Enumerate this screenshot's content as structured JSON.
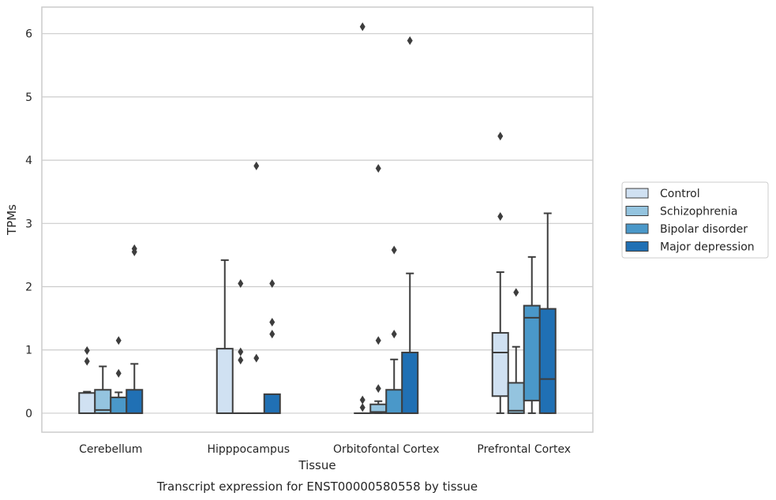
{
  "caption": "Transcript expression for ENST00000580558 by tissue",
  "chart_data": {
    "type": "box",
    "xlabel": "Tissue",
    "ylabel": "TPMs",
    "ylim": [
      -0.3,
      6.42
    ],
    "yticks": [
      0,
      1,
      2,
      3,
      4,
      5,
      6
    ],
    "grid": "horizontal",
    "legend_position": "right",
    "categories": [
      "Cerebellum",
      "Hipppocampus",
      "Orbitofontal Cortex",
      "Prefrontal Cortex"
    ],
    "series": [
      {
        "name": "Control",
        "color": "#d0e1f2",
        "boxes": [
          {
            "q1": 0.0,
            "median": 0.0,
            "q3": 0.32,
            "whisker_low": 0.0,
            "whisker_high": 0.34,
            "outliers": [
              0.82,
              0.99
            ]
          },
          {
            "q1": 0.0,
            "median": 0.0,
            "q3": 1.02,
            "whisker_low": 0.0,
            "whisker_high": 2.42,
            "outliers": []
          },
          {
            "q1": 0.0,
            "median": 0.0,
            "q3": 0.0,
            "whisker_low": 0.0,
            "whisker_high": 0.0,
            "outliers": [
              0.09,
              0.21,
              6.11
            ]
          },
          {
            "q1": 0.27,
            "median": 0.96,
            "q3": 1.27,
            "whisker_low": 0.0,
            "whisker_high": 2.23,
            "outliers": [
              3.11,
              4.38
            ]
          }
        ]
      },
      {
        "name": "Schizophrenia",
        "color": "#94c4df",
        "boxes": [
          {
            "q1": 0.0,
            "median": 0.05,
            "q3": 0.37,
            "whisker_low": 0.0,
            "whisker_high": 0.74,
            "outliers": []
          },
          {
            "q1": 0.0,
            "median": 0.0,
            "q3": 0.0,
            "whisker_low": 0.0,
            "whisker_high": 0.0,
            "outliers": [
              0.84,
              0.97,
              2.05
            ]
          },
          {
            "q1": 0.0,
            "median": 0.02,
            "q3": 0.14,
            "whisker_low": 0.0,
            "whisker_high": 0.19,
            "outliers": [
              0.39,
              1.15,
              3.87
            ]
          },
          {
            "q1": 0.0,
            "median": 0.04,
            "q3": 0.48,
            "whisker_low": 0.0,
            "whisker_high": 1.05,
            "outliers": [
              1.91
            ]
          }
        ]
      },
      {
        "name": "Bipolar disorder",
        "color": "#4a98c9",
        "boxes": [
          {
            "q1": 0.0,
            "median": 0.0,
            "q3": 0.25,
            "whisker_low": 0.0,
            "whisker_high": 0.33,
            "outliers": [
              0.63,
              1.15
            ]
          },
          {
            "q1": 0.0,
            "median": 0.0,
            "q3": 0.0,
            "whisker_low": 0.0,
            "whisker_high": 0.0,
            "outliers": [
              0.87,
              3.91
            ]
          },
          {
            "q1": 0.0,
            "median": 0.0,
            "q3": 0.37,
            "whisker_low": 0.0,
            "whisker_high": 0.85,
            "outliers": [
              1.25,
              2.58
            ]
          },
          {
            "q1": 0.2,
            "median": 1.51,
            "q3": 1.7,
            "whisker_low": 0.0,
            "whisker_high": 2.47,
            "outliers": []
          }
        ]
      },
      {
        "name": "Major depression",
        "color": "#2070b4",
        "boxes": [
          {
            "q1": 0.0,
            "median": 0.0,
            "q3": 0.37,
            "whisker_low": 0.0,
            "whisker_high": 0.78,
            "outliers": [
              2.55,
              2.6
            ]
          },
          {
            "q1": 0.0,
            "median": 0.0,
            "q3": 0.3,
            "whisker_low": 0.0,
            "whisker_high": 0.3,
            "outliers": [
              1.25,
              1.44,
              2.05
            ]
          },
          {
            "q1": 0.0,
            "median": 0.0,
            "q3": 0.96,
            "whisker_low": 0.0,
            "whisker_high": 2.21,
            "outliers": [
              5.89
            ]
          },
          {
            "q1": 0.0,
            "median": 0.54,
            "q3": 1.65,
            "whisker_low": 0.0,
            "whisker_high": 3.16,
            "outliers": []
          }
        ]
      }
    ]
  }
}
